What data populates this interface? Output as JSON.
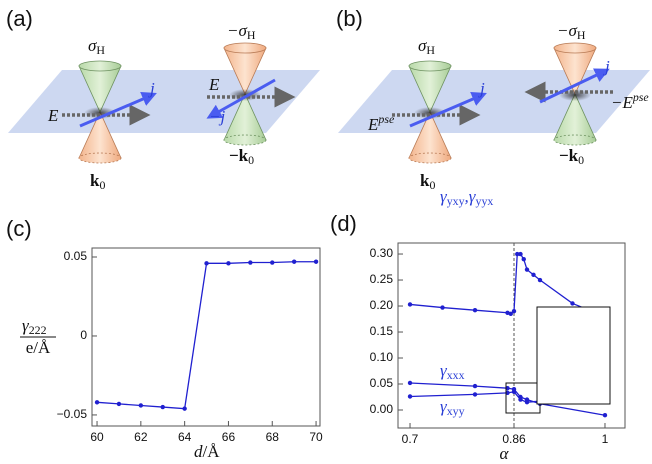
{
  "diagrams": [
    {
      "label": "(a)",
      "left_top": [
        {
          "text": "σ",
          "sub": "H",
          "italic": true
        }
      ],
      "right_top": [
        {
          "text": "−σ",
          "sub": "H",
          "italic": true
        }
      ],
      "left_field": [
        {
          "text": "E",
          "italic": true
        }
      ],
      "left_current": [
        {
          "text": "j",
          "italic": true
        }
      ],
      "right_field": [
        {
          "text": "E",
          "italic": true
        }
      ],
      "right_current": [
        {
          "text": "−j",
          "italic": true
        }
      ],
      "left_bottom": [
        {
          "text": "k",
          "sub": "0",
          "bold": true
        }
      ],
      "right_bottom": [
        {
          "text": "−k",
          "sub": "0",
          "bold": true
        }
      ]
    },
    {
      "label": "(b)",
      "left_top": [
        {
          "text": "σ",
          "sub": "H",
          "italic": true
        }
      ],
      "right_top": [
        {
          "text": "−σ",
          "sub": "H",
          "italic": true
        }
      ],
      "left_field": [
        {
          "text": "E",
          "sup": "pse",
          "italic": true
        }
      ],
      "left_current": [
        {
          "text": "j",
          "italic": true
        }
      ],
      "right_field": [
        {
          "text": "−E",
          "sup": "pse",
          "italic": true
        }
      ],
      "right_current": [
        {
          "text": "j",
          "italic": true
        }
      ],
      "left_bottom": [
        {
          "text": "k",
          "sub": "0",
          "bold": true
        }
      ],
      "right_bottom": [
        {
          "text": "−k",
          "sub": "0",
          "bold": true
        }
      ]
    }
  ],
  "chart_data": [
    {
      "type": "line",
      "label": "(c)",
      "x": [
        60,
        61,
        62,
        63,
        64,
        65,
        66,
        67,
        68,
        69,
        70
      ],
      "series": [
        {
          "color": "#2020d0",
          "values": [
            -0.042,
            -0.043,
            -0.044,
            -0.045,
            -0.046,
            0.046,
            0.046,
            0.0465,
            0.0465,
            0.047,
            0.047
          ]
        }
      ],
      "xlim": [
        59.77,
        70.18
      ],
      "ylim": [
        -0.057,
        0.0557
      ],
      "xticks": [
        60,
        62,
        64,
        66,
        68,
        70
      ],
      "yticks": [
        {
          "value": -0.05,
          "label": "−0.05"
        },
        0,
        0.05
      ],
      "x_label": [
        {
          "text": "d",
          "italic": true
        },
        {
          "text": "/Å"
        }
      ],
      "y_label": {
        "numerator": [
          {
            "text": "γ",
            "sub": "222",
            "italic": true
          }
        ],
        "denominator": "e/Å"
      }
    },
    {
      "type": "line",
      "label": "(d)",
      "series": [
        {
          "name": [
            {
              "text": "γ",
              "sub": "yxy",
              "italic": true
            },
            {
              "text": ",γ",
              "sub": "yyx",
              "italic": true
            }
          ],
          "color": "#2020d0",
          "x": [
            0.7,
            0.75,
            0.8,
            0.85,
            0.855,
            0.86,
            0.865,
            0.87,
            0.875,
            0.88,
            0.89,
            0.9,
            0.95,
            1.0
          ],
          "values": [
            0.203,
            0.197,
            0.192,
            0.187,
            0.185,
            0.19,
            0.3,
            0.3,
            0.29,
            0.27,
            0.26,
            0.25,
            0.205,
            0.18
          ]
        },
        {
          "name": [
            {
              "text": "γ",
              "sub": "xxx",
              "italic": true
            }
          ],
          "color": "#2020d0",
          "x": [
            0.7,
            0.8,
            0.85,
            0.86,
            0.87,
            0.88,
            0.9,
            1.0
          ],
          "values": [
            0.052,
            0.046,
            0.042,
            0.04,
            0.025,
            0.02,
            0.012,
            -0.01
          ]
        },
        {
          "name": [
            {
              "text": "γ",
              "sub": "xyy",
              "italic": true
            }
          ],
          "color": "#2020d0",
          "x": [
            0.7,
            0.8,
            0.85,
            0.86,
            0.87,
            0.88,
            0.9,
            1.0
          ],
          "values": [
            0.026,
            0.03,
            0.033,
            0.035,
            0.02,
            0.015,
            0.017,
            0.022
          ]
        }
      ],
      "xlim": [
        0.6815,
        1.0308
      ],
      "ylim": [
        -0.0346,
        0.3212
      ],
      "xticks": [
        0.7,
        0.86,
        1
      ],
      "yticks": [
        {
          "value": 0,
          "label": "0.00"
        },
        {
          "value": 0.05,
          "label": "0.05"
        },
        {
          "value": 0.1,
          "label": "0.10"
        },
        {
          "value": 0.15,
          "label": "0.15"
        },
        {
          "value": 0.2,
          "label": "0.20"
        },
        {
          "value": 0.25,
          "label": "0.25"
        },
        {
          "value": 0.3,
          "label": "0.30"
        }
      ],
      "marker_line": 0.86,
      "x_label": [
        {
          "text": "α",
          "italic": true
        }
      ]
    }
  ]
}
